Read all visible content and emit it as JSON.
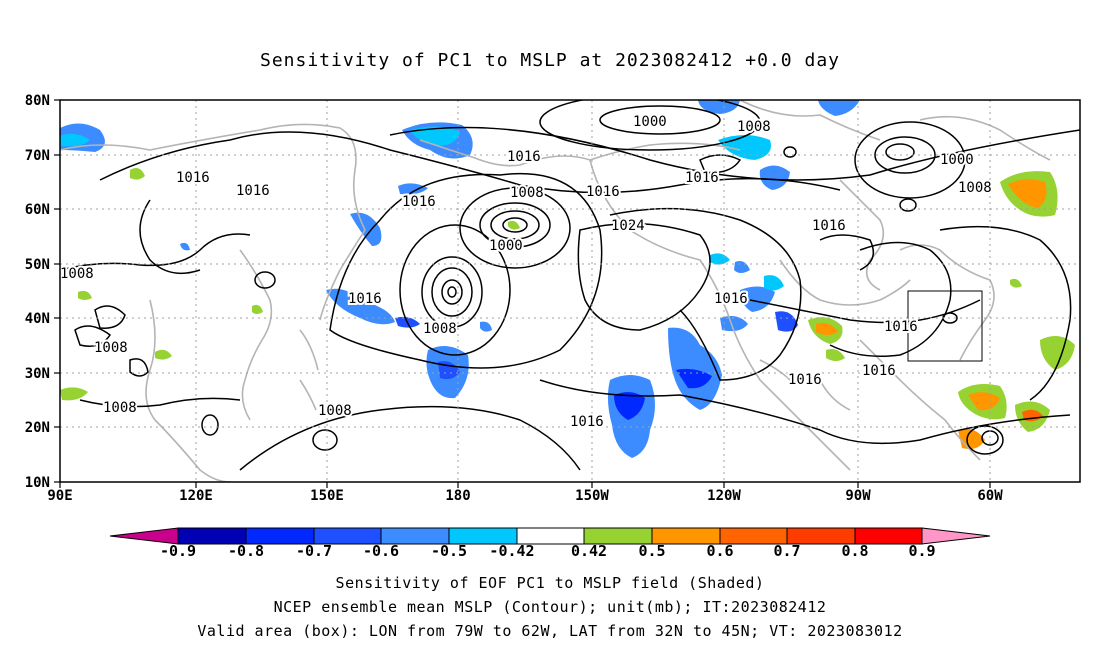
{
  "title": "Sensitivity of PC1 to MSLP at 2023082412 +0.0 day",
  "axes": {
    "x_ticks": [
      "90E",
      "120E",
      "150E",
      "180",
      "150W",
      "120W",
      "90W",
      "60W"
    ],
    "y_ticks": [
      "80N",
      "70N",
      "60N",
      "50N",
      "40N",
      "30N",
      "20N",
      "10N"
    ]
  },
  "contour_labels": [
    "1000",
    "1008",
    "1016",
    "1000",
    "1008",
    "1016",
    "1016",
    "1016",
    "1016",
    "1008",
    "1016",
    "1000",
    "1024",
    "1016",
    "1008",
    "1016",
    "1008",
    "1016",
    "1008",
    "1016",
    "1016",
    "1016",
    "1008",
    "1008",
    "1016",
    "1008"
  ],
  "colorbar": {
    "labels": [
      "-0.9",
      "-0.8",
      "-0.7",
      "-0.6",
      "-0.5",
      "-0.42",
      "0.42",
      "0.5",
      "0.6",
      "0.7",
      "0.8",
      "0.9"
    ],
    "colors": [
      "#c8008c",
      "#0000b4",
      "#0028ff",
      "#1e50ff",
      "#3c8cff",
      "#00c8ff",
      "#ffffff",
      "#96d232",
      "#ff9600",
      "#ff6400",
      "#ff3c00",
      "#ff0000",
      "#ff96c8"
    ]
  },
  "valid_box": {
    "lon_from": "79W",
    "lon_to": "62W",
    "lat_from": "32N",
    "lat_to": "45N"
  },
  "captions": {
    "line1": "Sensitivity of EOF PC1 to MSLP field (Shaded)",
    "line2": "NCEP ensemble mean MSLP (Contour); unit(mb); IT:2023082412",
    "line3": "Valid area (box): LON from 79W to 62W, LAT from 32N to 45N; VT: 2023083012"
  }
}
